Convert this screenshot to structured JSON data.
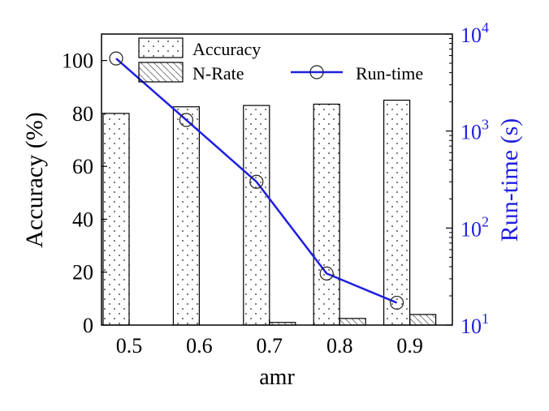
{
  "chart_data": {
    "type": "bar",
    "x": {
      "label": "amr",
      "categories": [
        "0.5",
        "0.6",
        "0.7",
        "0.8",
        "0.9"
      ]
    },
    "y_left": {
      "label": "Accuracy (%)",
      "ylim": [
        0,
        110
      ],
      "ticks": [
        "0",
        "20",
        "40",
        "60",
        "80",
        "100"
      ]
    },
    "y_right": {
      "label": "Run-time (s)",
      "scale": "log",
      "ylim": [
        10,
        10000
      ],
      "ticks": [
        {
          "base": "10",
          "exp": "1"
        },
        {
          "base": "10",
          "exp": "2"
        },
        {
          "base": "10",
          "exp": "3"
        },
        {
          "base": "10",
          "exp": "4"
        }
      ]
    },
    "series": [
      {
        "name": "Accuracy",
        "kind": "bar",
        "axis": "left",
        "pattern": "dots",
        "values": [
          80,
          82.5,
          83,
          83.5,
          85
        ]
      },
      {
        "name": "N-Rate",
        "kind": "bar",
        "axis": "left",
        "pattern": "hatch",
        "values": [
          0,
          0,
          1,
          2.5,
          4
        ]
      },
      {
        "name": "Run-time",
        "kind": "line",
        "axis": "right",
        "marker": "circle",
        "color": "#1f1fe0",
        "values": [
          5600,
          1300,
          300,
          34,
          17
        ]
      }
    ],
    "legend": {
      "placement": "top",
      "entries": [
        "Accuracy",
        "N-Rate",
        "Run-time"
      ]
    },
    "grid": false
  }
}
